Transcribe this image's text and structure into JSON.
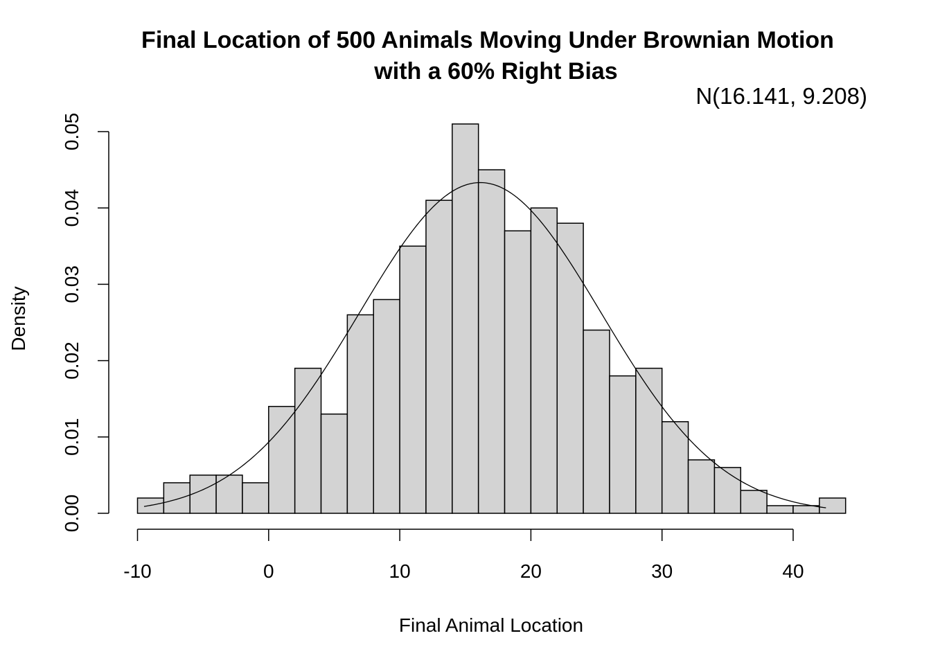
{
  "chart_data": {
    "type": "bar",
    "title_line1": "Final Location of 500 Animals Moving Under Brownian Motion",
    "title_line2": "with a 60% Right Bias",
    "annotation": "N(16.141, 9.208)",
    "xlabel": "Final Animal Location",
    "ylabel": "Density",
    "xlim": [
      -10,
      44
    ],
    "ylim": [
      0,
      0.05
    ],
    "x_ticks": [
      -10,
      0,
      10,
      20,
      30,
      40
    ],
    "x_tick_labels": [
      "-10",
      "0",
      "10",
      "20",
      "30",
      "40"
    ],
    "y_ticks": [
      0,
      0.01,
      0.02,
      0.03,
      0.04,
      0.05
    ],
    "y_tick_labels": [
      "0.00",
      "0.01",
      "0.02",
      "0.03",
      "0.04",
      "0.05"
    ],
    "bin_edges": [
      -10,
      -8,
      -6,
      -4,
      -2,
      0,
      2,
      4,
      6,
      8,
      10,
      12,
      14,
      16,
      18,
      20,
      22,
      24,
      26,
      28,
      30,
      32,
      34,
      36,
      38,
      40,
      42,
      44
    ],
    "values": [
      0.002,
      0.004,
      0.005,
      0.005,
      0.004,
      0.014,
      0.019,
      0.013,
      0.026,
      0.028,
      0.035,
      0.041,
      0.051,
      0.045,
      0.037,
      0.04,
      0.038,
      0.024,
      0.018,
      0.019,
      0.012,
      0.007,
      0.006,
      0.003,
      0.001,
      0.001,
      0.002
    ],
    "density_curve": {
      "mean": 16.141,
      "sd": 9.208,
      "x_range": [
        -9.5,
        42.5
      ]
    },
    "bar_fill": "#d3d3d3",
    "grid": false
  }
}
